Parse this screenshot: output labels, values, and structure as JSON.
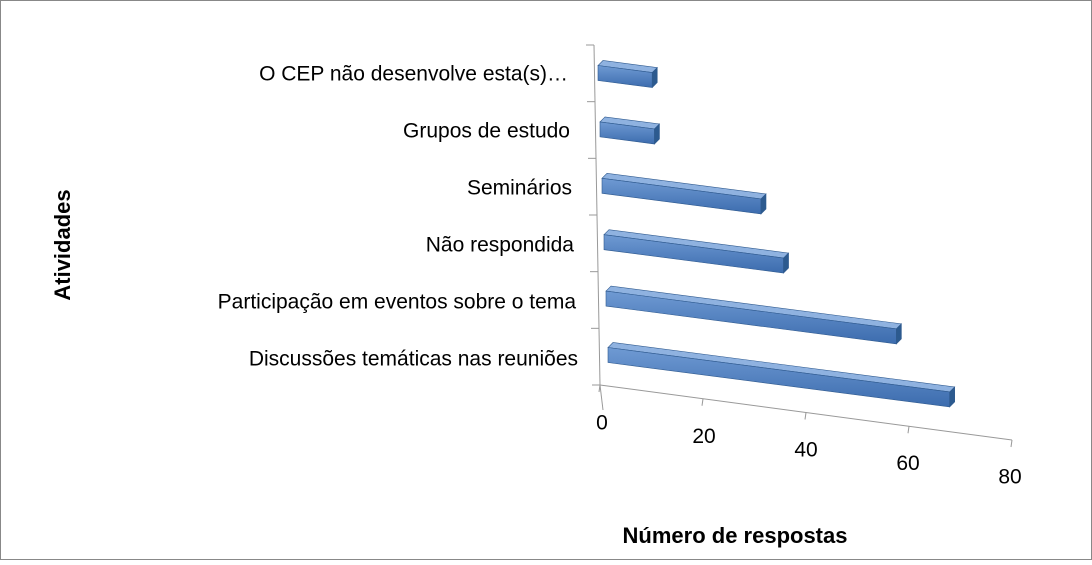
{
  "chart_data": {
    "type": "bar3d",
    "categories": [
      "Discussões temáticas nas reuniões",
      "Participação em eventos sobre o tema",
      "Não respondida",
      "Seminários",
      "Grupos de estudo",
      "O CEP não desenvolve esta(s)…"
    ],
    "values": [
      68,
      58,
      36,
      32,
      11,
      11
    ],
    "color": "#4f81bd",
    "xlim": [
      0,
      80
    ],
    "xticks": [
      0,
      20,
      40,
      60,
      80
    ],
    "xlabel": "Número de respostas",
    "ylabel": "Atividades"
  }
}
